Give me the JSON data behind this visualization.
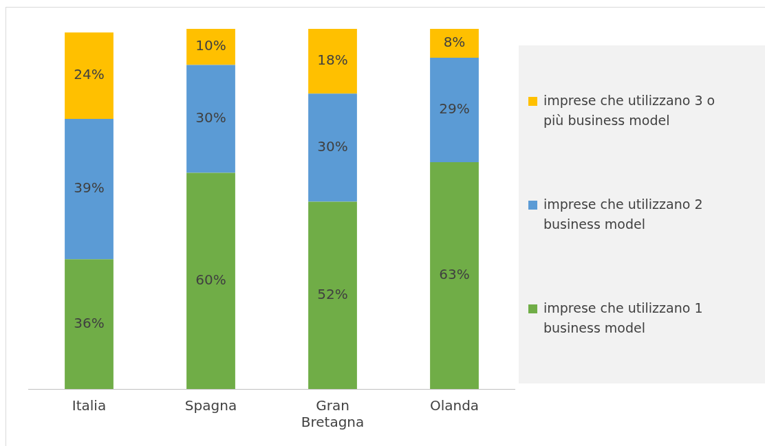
{
  "chart_data": {
    "type": "bar",
    "stacked": true,
    "legend": "right",
    "grid": false,
    "categories": [
      "Italia",
      "Spagna",
      "Gran Bretagna",
      "Olanda"
    ],
    "series": [
      {
        "name": "imprese che utilizzano 1 business model",
        "color": "#70ad47",
        "values": [
          36,
          60,
          52,
          63
        ],
        "value_labels": [
          "36%",
          "60%",
          "52%",
          "63%"
        ]
      },
      {
        "name": "imprese che utilizzano 2 business model",
        "color": "#5b9bd5",
        "values": [
          39,
          30,
          30,
          29
        ],
        "value_labels": [
          "39%",
          "30%",
          "30%",
          "29%"
        ]
      },
      {
        "name": "imprese che utilizzano 3 o più business model",
        "color": "#ffc000",
        "values": [
          24,
          10,
          18,
          8
        ],
        "value_labels": [
          "24%",
          "10%",
          "18%",
          "8%"
        ]
      }
    ]
  }
}
